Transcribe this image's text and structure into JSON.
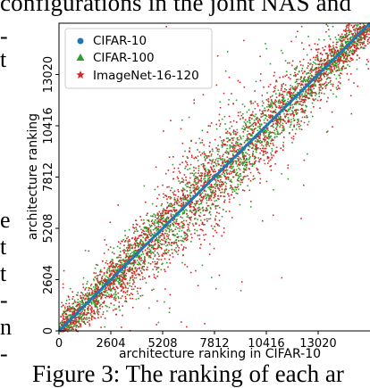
{
  "page_text": {
    "top_cut": "configurations in the joint NAS and",
    "bottom_cut": "Figure 3:  The ranking of each ar",
    "left_margin_fragments": [
      "-",
      "t",
      "e",
      "t",
      "t",
      "-",
      "n",
      "-"
    ]
  },
  "chart_data": {
    "type": "scatter",
    "title": "",
    "xlabel": "architecture ranking in CIFAR-10",
    "ylabel": "architecture ranking",
    "xlim": [
      0,
      15625
    ],
    "ylim": [
      0,
      15625
    ],
    "xticks": [
      0,
      2604,
      5208,
      7812,
      10416,
      13020
    ],
    "yticks": [
      0,
      2604,
      5208,
      7812,
      10416,
      13020
    ],
    "grid": false,
    "legend_position": "top-left",
    "series": [
      {
        "name": "CIFAR-10",
        "color": "#1f77b4",
        "marker": "circle",
        "relation": "y = x for all 15625 architectures"
      },
      {
        "name": "CIFAR-100",
        "color": "#2ca02c",
        "marker": "triangle",
        "relation": "scattered around y = x"
      },
      {
        "name": "ImageNet-16-120",
        "color": "#d62728",
        "marker": "star",
        "relation": "scattered around y = x, wider spread"
      }
    ]
  }
}
